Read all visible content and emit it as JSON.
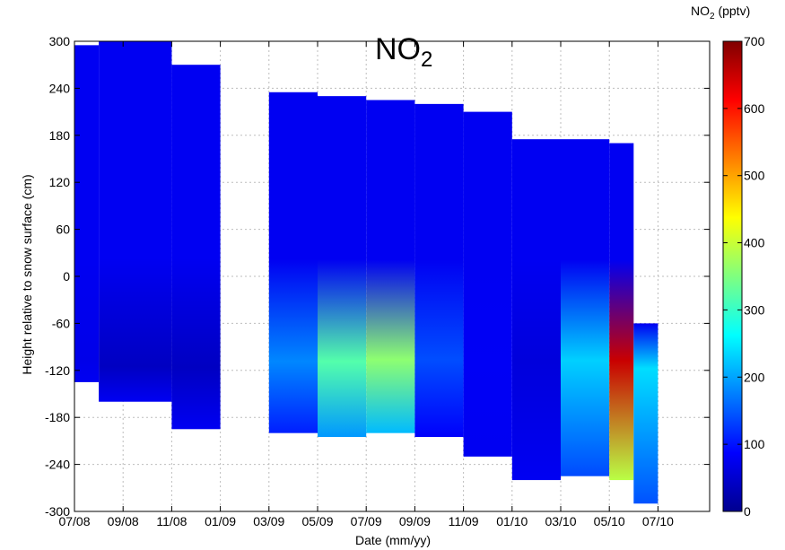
{
  "chart_data": {
    "type": "heatmap",
    "title": "NO",
    "title_subscript": "2",
    "xlabel": "Date (mm/yy)",
    "ylabel": "Height relative to snow surface (cm)",
    "x_ticks": [
      "07/08",
      "09/08",
      "11/08",
      "01/09",
      "03/09",
      "05/09",
      "07/09",
      "09/09",
      "11/09",
      "01/10",
      "03/10",
      "05/10",
      "07/10"
    ],
    "y_ticks": [
      300,
      240,
      180,
      120,
      60,
      0,
      -60,
      -120,
      -180,
      -240,
      -300
    ],
    "ylim": [
      -300,
      300
    ],
    "grid": true,
    "colorbar": {
      "label_prefix": "NO",
      "label_subscript": "2",
      "label_suffix": " (pptv)",
      "ticks": [
        700,
        600,
        500,
        400,
        300,
        200,
        100,
        0
      ],
      "range": [
        0,
        700
      ],
      "colormap": "jet",
      "position": "right"
    },
    "segments": [
      {
        "start": "07/08",
        "end": "08/08",
        "top": 295,
        "bottom": -135,
        "level": 70
      },
      {
        "start": "08/08",
        "end": "11/08",
        "top": 300,
        "bottom": -160,
        "level": 40
      },
      {
        "start": "11/08",
        "end": "01/09",
        "top": 270,
        "bottom": -195,
        "level": 40
      },
      {
        "start": "03/09",
        "end": "05/09",
        "top": 235,
        "bottom": -200,
        "level": 180
      },
      {
        "start": "05/09",
        "end": "07/09",
        "top": 230,
        "bottom": -205,
        "level": 320
      },
      {
        "start": "07/09",
        "end": "09/09",
        "top": 225,
        "bottom": -200,
        "level": 360
      },
      {
        "start": "09/09",
        "end": "11/09",
        "top": 220,
        "bottom": -205,
        "level": 140
      },
      {
        "start": "11/09",
        "end": "01/10",
        "top": 210,
        "bottom": -230,
        "level": 80
      },
      {
        "start": "01/10",
        "end": "03/10",
        "top": 175,
        "bottom": -260,
        "level": 60
      },
      {
        "start": "03/10",
        "end": "05/10",
        "top": 175,
        "bottom": -255,
        "level": 230
      },
      {
        "start": "05/10",
        "end": "06/10",
        "top": 170,
        "bottom": -260,
        "level": 650
      },
      {
        "start": "06/10",
        "end": "07/10",
        "top": -60,
        "bottom": -290,
        "level": 240
      }
    ]
  }
}
